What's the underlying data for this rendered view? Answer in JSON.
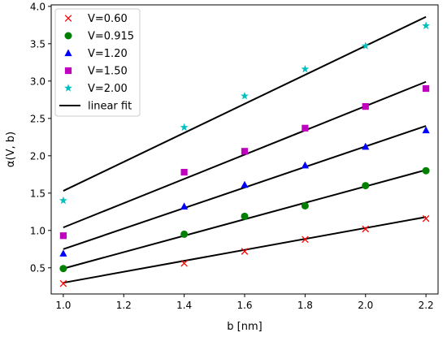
{
  "chart_data": {
    "type": "scatter",
    "title": "",
    "xlabel": "b [nm]",
    "ylabel": "α(V, b)",
    "xlim": [
      0.96,
      2.24
    ],
    "ylim": [
      0.15,
      4.02
    ],
    "xticks": [
      1.0,
      1.2,
      1.4,
      1.6,
      1.8,
      2.0,
      2.2
    ],
    "xtick_labels": [
      "1.0",
      "1.2",
      "1.4",
      "1.6",
      "1.8",
      "2.0",
      "2.2"
    ],
    "yticks": [
      0.5,
      1.0,
      1.5,
      2.0,
      2.5,
      3.0,
      3.5,
      4.0
    ],
    "ytick_labels": [
      "0.5",
      "1.0",
      "1.5",
      "2.0",
      "2.5",
      "3.0",
      "3.5",
      "4.0"
    ],
    "grid": false,
    "legend_position": "top-left",
    "x": [
      1.0,
      1.4,
      1.6,
      1.8,
      2.0,
      2.2
    ],
    "series": [
      {
        "name": "V=0.60",
        "marker": "x",
        "color": "#ff0000",
        "values": [
          0.29,
          0.56,
          0.72,
          0.88,
          1.02,
          1.16
        ]
      },
      {
        "name": "V=0.915",
        "marker": "circle",
        "color": "#008000",
        "values": [
          0.49,
          0.95,
          1.19,
          1.33,
          1.6,
          1.8
        ]
      },
      {
        "name": "V=1.20",
        "marker": "triangle",
        "color": "#0000ff",
        "values": [
          0.69,
          1.32,
          1.61,
          1.87,
          2.12,
          2.34
        ]
      },
      {
        "name": "V=1.50",
        "marker": "square",
        "color": "#bf00bf",
        "values": [
          0.93,
          1.78,
          2.06,
          2.37,
          2.66,
          2.9
        ]
      },
      {
        "name": "V=2.00",
        "marker": "star",
        "color": "#00bfbf",
        "values": [
          1.4,
          2.38,
          2.8,
          3.16,
          3.47,
          3.74
        ]
      }
    ],
    "fit_lines": {
      "name": "linear fit",
      "color": "#000000",
      "segments": [
        {
          "x": [
            1.0,
            2.2
          ],
          "y": [
            0.3,
            1.18
          ]
        },
        {
          "x": [
            1.0,
            2.2
          ],
          "y": [
            0.49,
            1.81
          ]
        },
        {
          "x": [
            1.0,
            2.2
          ],
          "y": [
            0.75,
            2.4
          ]
        },
        {
          "x": [
            1.0,
            2.2
          ],
          "y": [
            1.04,
            2.99
          ]
        },
        {
          "x": [
            1.0,
            2.2
          ],
          "y": [
            1.53,
            3.86
          ]
        }
      ]
    }
  }
}
